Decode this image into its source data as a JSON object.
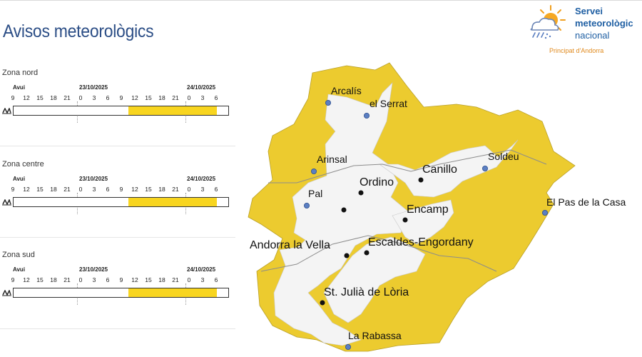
{
  "page": {
    "title": "Avisos meteorològics"
  },
  "logo": {
    "line1": "Servei",
    "line2": "meteorològic",
    "line3": "nacional",
    "subtitle": "Principat d'Andorra",
    "icon": "sun-cloud-rain-icon"
  },
  "timeline": {
    "days": [
      "Avui",
      "23/10/2025",
      "24/10/2025"
    ],
    "hours": [
      "9",
      "12",
      "15",
      "18",
      "21",
      "0",
      "3",
      "6",
      "9",
      "12",
      "15",
      "18",
      "21",
      "0",
      "3",
      "6"
    ]
  },
  "zones": [
    {
      "name": "Zona nord",
      "warning_color": "#f8d51f",
      "warning_from_hour_index": 9,
      "warning_to_hour_index": 15
    },
    {
      "name": "Zona centre",
      "warning_color": "#f8d51f",
      "warning_from_hour_index": 9,
      "warning_to_hour_index": 15
    },
    {
      "name": "Zona sud",
      "warning_color": "#f8d51f",
      "warning_from_hour_index": 9,
      "warning_to_hour_index": 15
    }
  ],
  "map": {
    "places": [
      {
        "name": "Arcalís",
        "kind": "station"
      },
      {
        "name": "el Serrat",
        "kind": "station"
      },
      {
        "name": "Arinsal",
        "kind": "station"
      },
      {
        "name": "Soldeu",
        "kind": "station"
      },
      {
        "name": "Pal",
        "kind": "station"
      },
      {
        "name": "Ordino",
        "kind": "town"
      },
      {
        "name": "Canillo",
        "kind": "town"
      },
      {
        "name": "Encamp",
        "kind": "town"
      },
      {
        "name": "El Pas de la Casa",
        "kind": "station"
      },
      {
        "name": "Andorra la Vella",
        "kind": "town"
      },
      {
        "name": "Escaldes-Engordany",
        "kind": "town"
      },
      {
        "name": "St. Julià de Lòria",
        "kind": "town"
      },
      {
        "name": "La Rabassa",
        "kind": "station"
      }
    ],
    "colors": {
      "warning": "#eccb2f",
      "no_warning": "#f4f4f4",
      "town_marker": "#111111",
      "station_marker": "#5b7fc2"
    }
  }
}
